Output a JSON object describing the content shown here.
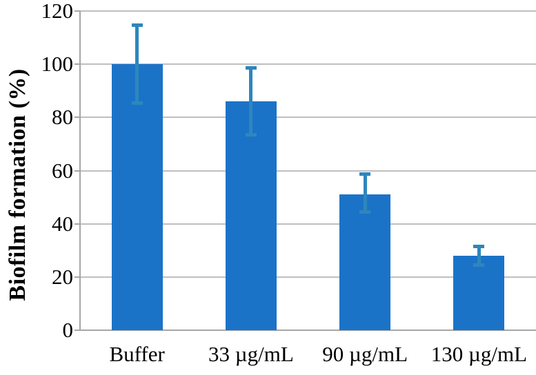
{
  "chart_data": {
    "type": "bar",
    "title": "",
    "xlabel": "",
    "ylabel": "Biofilm formation (%)",
    "categories": [
      "Buffer",
      "33 µg/mL",
      "90 µg/mL",
      "130 µg/mL"
    ],
    "values": [
      100,
      86,
      51,
      28
    ],
    "error_bars": {
      "upper": [
        115,
        99,
        59,
        32
      ],
      "lower": [
        85,
        73,
        44,
        24
      ]
    },
    "ylim": [
      0,
      120
    ],
    "yticks": [
      0,
      20,
      40,
      60,
      80,
      100,
      120
    ],
    "ytick_labels": [
      "0",
      "20",
      "40",
      "60",
      "80",
      "100",
      "120"
    ],
    "grid": true,
    "legend": false,
    "colors": {
      "bar": "#1b73c8",
      "error": "#2e86bd",
      "gridline": "#bfbfbf",
      "axis": "#a6a6a6",
      "text": "#000000",
      "background": "#ffffff"
    }
  }
}
